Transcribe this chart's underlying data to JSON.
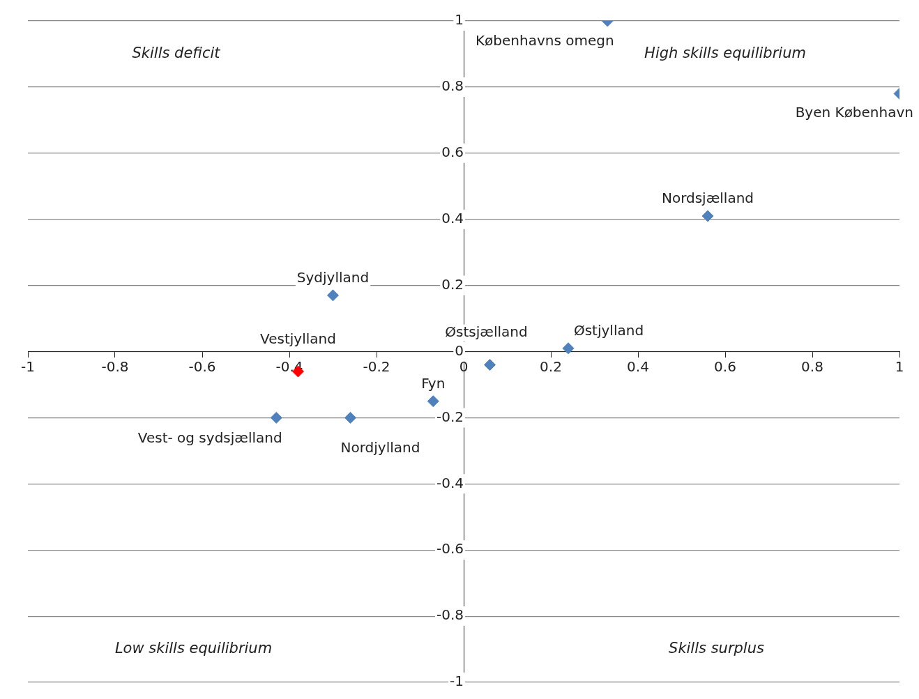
{
  "chart_data": {
    "type": "scatter",
    "x": [
      0.33,
      1,
      0.56,
      -0.3,
      0.24,
      0.06,
      -0.07,
      -0.38,
      -0.43,
      -0.26
    ],
    "series": [
      {
        "colors": [
          "#4f81bd",
          "#4f81bd",
          "#4f81bd",
          "#4f81bd",
          "#4f81bd",
          "#4f81bd",
          "#4f81bd",
          "#ff0000",
          "#4f81bd",
          "#4f81bd"
        ],
        "values": [
          1,
          0.78,
          0.41,
          0.17,
          0.01,
          -0.04,
          -0.15,
          -0.06,
          -0.2,
          -0.2
        ],
        "value_labels": [
          "Københavns omegn",
          "Byen København",
          "Nordsjælland",
          "Sydjylland",
          "Østjylland",
          "Østsjælland",
          "Fyn",
          "Vestjylland",
          "Vest- og sydsjælland",
          "Nordjylland"
        ]
      }
    ],
    "xlim": [
      -1,
      1
    ],
    "xticks": [
      -1,
      -0.8,
      -0.6,
      -0.4,
      -0.2,
      0,
      0.2,
      0.4,
      0.6,
      0.8,
      1
    ],
    "ylim": [
      -1,
      1
    ],
    "yticks": [
      -1,
      -0.8,
      -0.6,
      -0.4,
      -0.2,
      0,
      0.2,
      0.4,
      0.6,
      0.8,
      1
    ],
    "annotations": [
      "Skills deficit",
      "High skills equilibrium",
      "Low skills equilibrium",
      "Skills surplus"
    ],
    "grid": "y",
    "marker": "diamond",
    "legend": false
  }
}
